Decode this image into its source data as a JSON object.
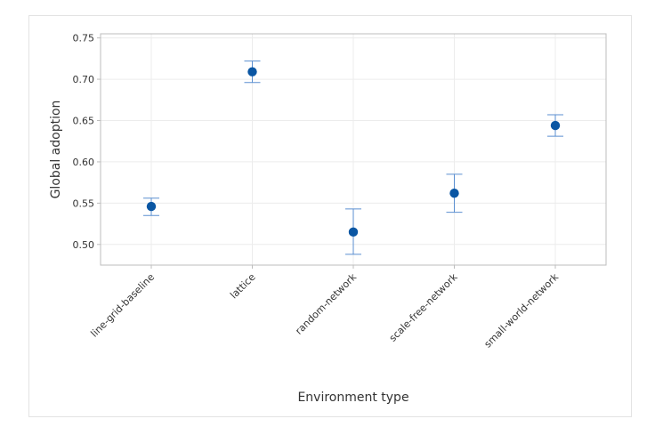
{
  "chart_data": {
    "type": "scatter",
    "categories": [
      "line-grid-baseline",
      "lattice",
      "random-network",
      "scale-free-network",
      "small-world-network"
    ],
    "values": [
      0.546,
      0.709,
      0.515,
      0.562,
      0.644
    ],
    "error_low": [
      0.535,
      0.696,
      0.488,
      0.539,
      0.631
    ],
    "error_high": [
      0.556,
      0.722,
      0.543,
      0.585,
      0.657
    ],
    "title": "",
    "xlabel": "Environment type",
    "ylabel": "Global adoption",
    "ylim": [
      0.475,
      0.755
    ],
    "yticks": [
      "0.50",
      "0.55",
      "0.60",
      "0.65",
      "0.70",
      "0.75"
    ],
    "grid": true,
    "colors": {
      "point": "#0a56a3",
      "error_bar": "#5b8fd0",
      "grid": "#ececec",
      "axis": "#bdbdbd"
    }
  }
}
